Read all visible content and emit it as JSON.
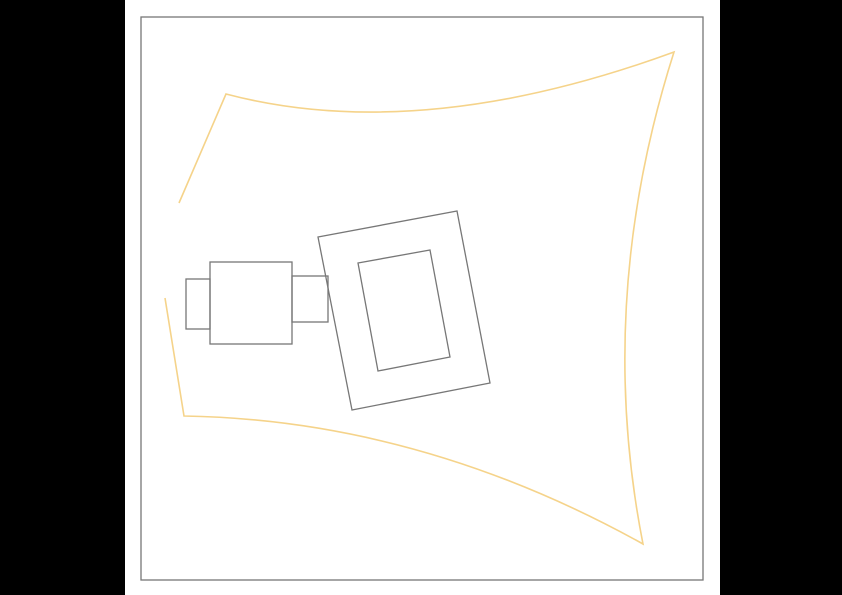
{
  "diagram": {
    "colors": {
      "background": "#000000",
      "page": "#ffffff",
      "frame_stroke": "#777777",
      "device_stroke": "#777777",
      "field_stroke": "#f5d38a"
    },
    "shapes": [
      "frame",
      "field-of-view",
      "camera-mount-plate",
      "camera-body",
      "camera-lens-barrel",
      "tilted-panel-outer",
      "tilted-panel-inner"
    ]
  }
}
